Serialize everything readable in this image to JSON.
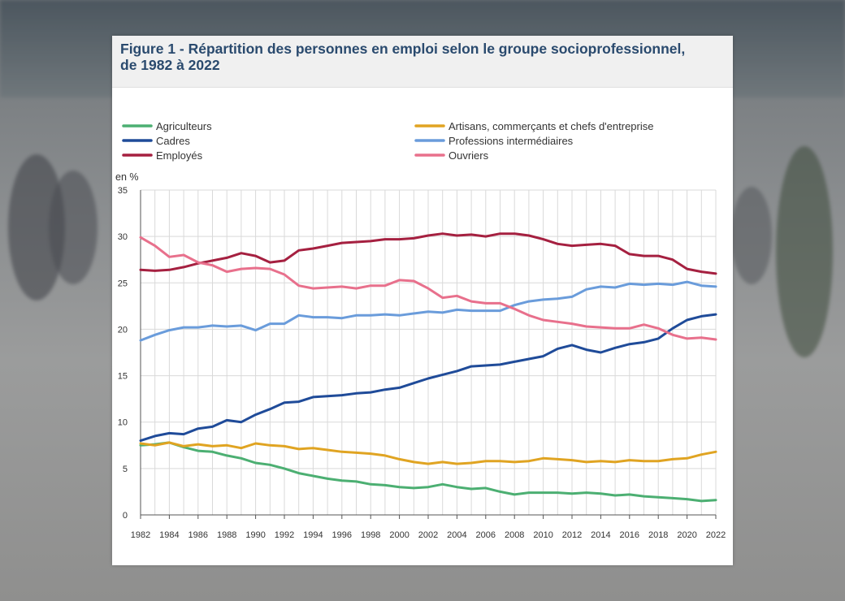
{
  "figure": {
    "title_line1": "Figure 1 - Répartition des personnes en emploi selon le groupe socioprofessionnel,",
    "title_line2": "de 1982 à 2022"
  },
  "chart_data": {
    "type": "line",
    "ylabel": "en %",
    "ylim": [
      0,
      35
    ],
    "yticks": [
      0,
      5,
      10,
      15,
      20,
      25,
      30,
      35
    ],
    "xlim": [
      1982,
      2022
    ],
    "xticks": [
      1982,
      1984,
      1986,
      1988,
      1990,
      1992,
      1994,
      1996,
      1998,
      2000,
      2002,
      2004,
      2006,
      2008,
      2010,
      2012,
      2014,
      2016,
      2018,
      2020,
      2022
    ],
    "grid": true,
    "legend_position": "top",
    "x": [
      1982,
      1983,
      1984,
      1985,
      1986,
      1987,
      1988,
      1989,
      1990,
      1991,
      1992,
      1993,
      1994,
      1995,
      1996,
      1997,
      1998,
      1999,
      2000,
      2001,
      2002,
      2003,
      2004,
      2005,
      2006,
      2007,
      2008,
      2009,
      2010,
      2011,
      2012,
      2013,
      2014,
      2015,
      2016,
      2017,
      2018,
      2019,
      2020,
      2021,
      2022
    ],
    "series": [
      {
        "name": "Agriculteurs",
        "color": "#4caf72",
        "values": [
          7.5,
          7.6,
          7.8,
          7.3,
          6.9,
          6.8,
          6.4,
          6.1,
          5.6,
          5.4,
          5.0,
          4.5,
          4.2,
          3.9,
          3.7,
          3.6,
          3.3,
          3.2,
          3.0,
          2.9,
          3.0,
          3.3,
          3.0,
          2.8,
          2.9,
          2.5,
          2.2,
          2.4,
          2.4,
          2.4,
          2.3,
          2.4,
          2.3,
          2.1,
          2.2,
          2.0,
          1.9,
          1.8,
          1.7,
          1.5,
          1.6
        ]
      },
      {
        "name": "Artisans, commerçants et chefs d'entreprise",
        "color": "#e0a422",
        "values": [
          7.7,
          7.5,
          7.8,
          7.4,
          7.6,
          7.4,
          7.5,
          7.2,
          7.7,
          7.5,
          7.4,
          7.1,
          7.2,
          7.0,
          6.8,
          6.7,
          6.6,
          6.4,
          6.0,
          5.7,
          5.5,
          5.7,
          5.5,
          5.6,
          5.8,
          5.8,
          5.7,
          5.8,
          6.1,
          6.0,
          5.9,
          5.7,
          5.8,
          5.7,
          5.9,
          5.8,
          5.8,
          6.0,
          6.1,
          6.5,
          6.8
        ]
      },
      {
        "name": "Cadres",
        "color": "#1f4b99",
        "values": [
          8.0,
          8.5,
          8.8,
          8.7,
          9.3,
          9.5,
          10.2,
          10.0,
          10.8,
          11.4,
          12.1,
          12.2,
          12.7,
          12.8,
          12.9,
          13.1,
          13.2,
          13.5,
          13.7,
          14.2,
          14.7,
          15.1,
          15.5,
          16.0,
          16.1,
          16.2,
          16.5,
          16.8,
          17.1,
          17.9,
          18.3,
          17.8,
          17.5,
          18.0,
          18.4,
          18.6,
          19.0,
          20.1,
          21.0,
          21.4,
          21.6
        ]
      },
      {
        "name": "Professions intermédiaires",
        "color": "#6a9cdb",
        "values": [
          18.8,
          19.4,
          19.9,
          20.2,
          20.2,
          20.4,
          20.3,
          20.4,
          19.9,
          20.6,
          20.6,
          21.5,
          21.3,
          21.3,
          21.2,
          21.5,
          21.5,
          21.6,
          21.5,
          21.7,
          21.9,
          21.8,
          22.1,
          22.0,
          22.0,
          22.0,
          22.6,
          23.0,
          23.2,
          23.3,
          23.5,
          24.3,
          24.6,
          24.5,
          24.9,
          24.8,
          24.9,
          24.8,
          25.1,
          24.7,
          24.6
        ]
      },
      {
        "name": "Employés",
        "color": "#a52040",
        "values": [
          26.4,
          26.3,
          26.4,
          26.7,
          27.1,
          27.4,
          27.7,
          28.2,
          27.9,
          27.2,
          27.4,
          28.5,
          28.7,
          29.0,
          29.3,
          29.4,
          29.5,
          29.7,
          29.7,
          29.8,
          30.1,
          30.3,
          30.1,
          30.2,
          30.0,
          30.3,
          30.3,
          30.1,
          29.7,
          29.2,
          29.0,
          29.1,
          29.2,
          29.0,
          28.1,
          27.9,
          27.9,
          27.5,
          26.5,
          26.2,
          26.0
        ]
      },
      {
        "name": "Ouvriers",
        "color": "#e8708c",
        "values": [
          29.9,
          29.0,
          27.8,
          28.0,
          27.2,
          26.9,
          26.2,
          26.5,
          26.6,
          26.5,
          25.9,
          24.7,
          24.4,
          24.5,
          24.6,
          24.4,
          24.7,
          24.7,
          25.3,
          25.2,
          24.4,
          23.4,
          23.6,
          23.0,
          22.8,
          22.8,
          22.2,
          21.5,
          21.0,
          20.8,
          20.6,
          20.3,
          20.2,
          20.1,
          20.1,
          20.5,
          20.1,
          19.4,
          19.0,
          19.1,
          18.9
        ]
      }
    ]
  }
}
